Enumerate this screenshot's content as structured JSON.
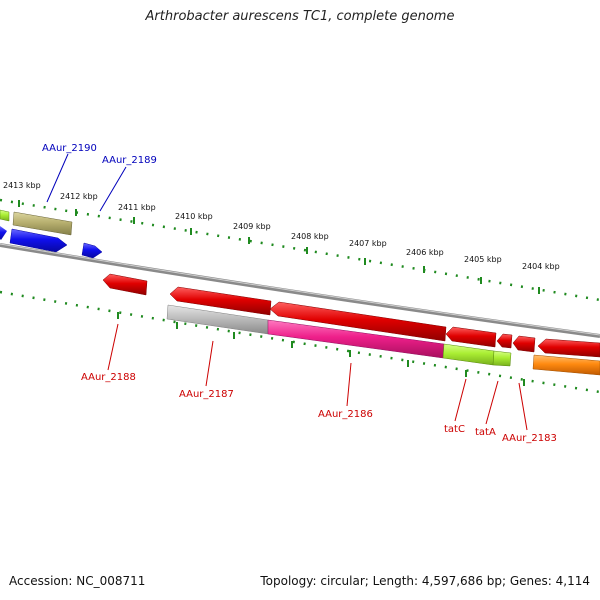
{
  "header": {
    "title": "Arthrobacter aurescens TC1, complete genome"
  },
  "footer": {
    "accession": "Accession: NC_008711",
    "stats": "Topology: circular; Length: 4,597,686 bp; Genes: 4,114"
  },
  "ruler": {
    "ticks": [
      "2413 kbp",
      "2412 kbp",
      "2411 kbp",
      "2410 kbp",
      "2409 kbp",
      "2408 kbp",
      "2407 kbp",
      "2406 kbp",
      "2405 kbp",
      "2404 kbp"
    ]
  },
  "gene_labels": {
    "aaur_2190": "AAur_2190",
    "aaur_2189": "AAur_2189",
    "aaur_2188": "AAur_2188",
    "aaur_2187": "AAur_2187",
    "aaur_2186": "AAur_2186",
    "tatc": "tatC",
    "tata": "tatA",
    "aaur_2183": "AAur_2183"
  },
  "colors": {
    "backbone": "#8a8a8a",
    "tick_dotted": "#1f8a1f",
    "forward_label": "#0000bb",
    "reverse_label": "#cc0000",
    "gene_red": "#e00000",
    "gene_blue": "#1010ee",
    "gene_olive": "#b8b070",
    "gene_lime": "#aaee33",
    "gene_gray": "#bdbdbd",
    "gene_magenta": "#ee1f8a",
    "gene_orange": "#ff8a10"
  }
}
